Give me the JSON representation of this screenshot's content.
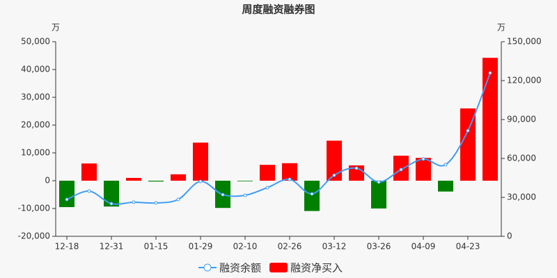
{
  "chart_data": {
    "type": "bar",
    "title": "周度融资融券图",
    "y_unit": "万",
    "y2_unit": "万",
    "categories": [
      "12-18",
      null,
      "12-31",
      null,
      "01-15",
      null,
      "01-29",
      null,
      "02-10",
      null,
      "02-26",
      null,
      "03-12",
      null,
      "03-26",
      null,
      "04-09",
      null,
      "04-23",
      null
    ],
    "ylim": [
      -20000,
      50000
    ],
    "yticks": [
      {
        "value": -20000,
        "label": "-20,000"
      },
      {
        "value": -10000,
        "label": "-10,000"
      },
      0,
      {
        "value": 10000,
        "label": "10,000"
      },
      {
        "value": 20000,
        "label": "20,000"
      },
      {
        "value": 30000,
        "label": "30,000"
      },
      {
        "value": 40000,
        "label": "40,000"
      },
      {
        "value": 50000,
        "label": "50,000"
      }
    ],
    "y2lim": [
      0,
      150000
    ],
    "y2ticks": [
      0,
      {
        "value": 30000,
        "label": "30,000"
      },
      {
        "value": 60000,
        "label": "60,000"
      },
      {
        "value": 90000,
        "label": "90,000"
      },
      {
        "value": 120000,
        "label": "120,000"
      },
      {
        "value": 150000,
        "label": "150,000"
      }
    ],
    "series": [
      {
        "name": "融资余额",
        "type": "line",
        "axis": "y2",
        "color": "#3d9cf5",
        "values": [
          28400,
          34800,
          25200,
          26250,
          25700,
          28400,
          42300,
          32100,
          31600,
          37500,
          43900,
          32700,
          47100,
          52500,
          41800,
          51400,
          59500,
          55200,
          81400,
          125900
        ]
      },
      {
        "name": "融资净买入",
        "type": "bar",
        "color": "#ff0000",
        "negative_color": "#008000",
        "values": [
          -9500,
          6200,
          -9300,
          1000,
          -300,
          2300,
          13700,
          -9800,
          -200,
          5700,
          6300,
          -10900,
          14400,
          5500,
          -10000,
          9000,
          8200,
          -3900,
          26000,
          44200
        ]
      }
    ]
  }
}
